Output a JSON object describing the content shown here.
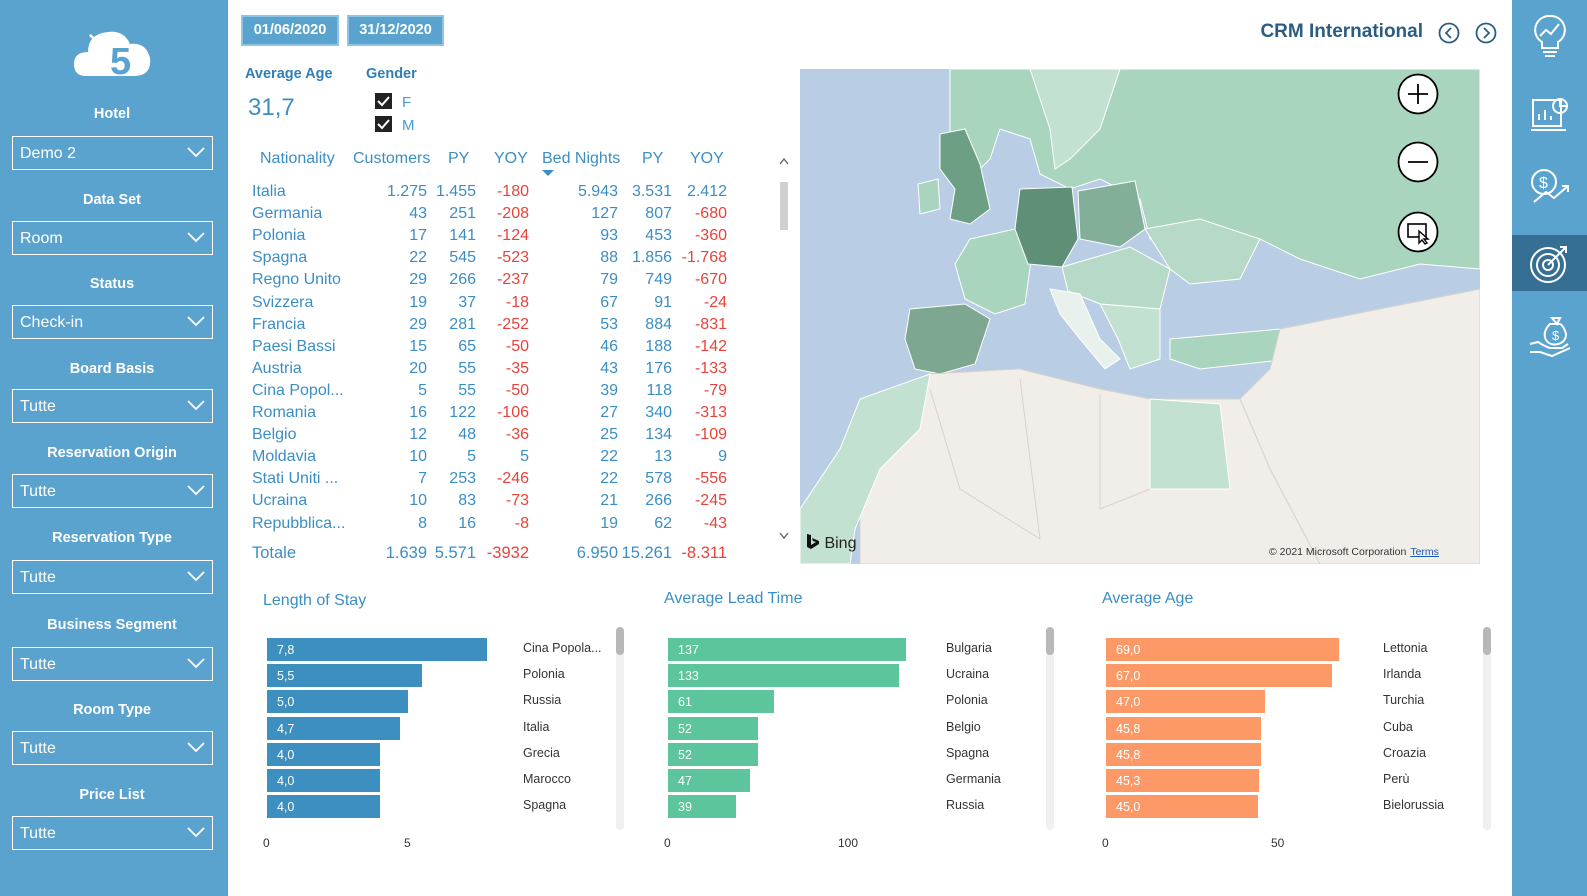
{
  "sidebar": {
    "logo_text": "×5",
    "filters": [
      {
        "label": "Hotel",
        "value": "Demo 2"
      },
      {
        "label": "Data Set",
        "value": "Room"
      },
      {
        "label": "Status",
        "value": "Check-in"
      },
      {
        "label": "Board Basis",
        "value": "Tutte"
      },
      {
        "label": "Reservation Origin",
        "value": "Tutte"
      },
      {
        "label": "Reservation Type",
        "value": "Tutte"
      },
      {
        "label": "Business Segment",
        "value": "Tutte"
      },
      {
        "label": "Room Type",
        "value": "Tutte"
      },
      {
        "label": "Price List",
        "value": "Tutte"
      }
    ]
  },
  "header": {
    "date_from": "01/06/2020",
    "date_to": "31/12/2020",
    "title": "CRM International"
  },
  "kpi": {
    "avg_age_label": "Average Age",
    "avg_age_value": "31,7",
    "gender_label": "Gender",
    "gender_options": [
      "F",
      "M"
    ]
  },
  "table": {
    "headers": [
      "Nationality",
      "Customers",
      "PY",
      "YOY",
      "Bed Nights",
      "PY",
      "YOY"
    ],
    "rows": [
      {
        "nat": "Italia",
        "cust": "1.275",
        "py": "1.455",
        "yoy": "-180",
        "bn": "5.943",
        "py2": "3.531",
        "yoy2": "2.412"
      },
      {
        "nat": "Germania",
        "cust": "43",
        "py": "251",
        "yoy": "-208",
        "bn": "127",
        "py2": "807",
        "yoy2": "-680"
      },
      {
        "nat": "Polonia",
        "cust": "17",
        "py": "141",
        "yoy": "-124",
        "bn": "93",
        "py2": "453",
        "yoy2": "-360"
      },
      {
        "nat": "Spagna",
        "cust": "22",
        "py": "545",
        "yoy": "-523",
        "bn": "88",
        "py2": "1.856",
        "yoy2": "-1.768"
      },
      {
        "nat": "Regno Unito",
        "cust": "29",
        "py": "266",
        "yoy": "-237",
        "bn": "79",
        "py2": "749",
        "yoy2": "-670"
      },
      {
        "nat": "Svizzera",
        "cust": "19",
        "py": "37",
        "yoy": "-18",
        "bn": "67",
        "py2": "91",
        "yoy2": "-24"
      },
      {
        "nat": "Francia",
        "cust": "29",
        "py": "281",
        "yoy": "-252",
        "bn": "53",
        "py2": "884",
        "yoy2": "-831"
      },
      {
        "nat": "Paesi Bassi",
        "cust": "15",
        "py": "65",
        "yoy": "-50",
        "bn": "46",
        "py2": "188",
        "yoy2": "-142"
      },
      {
        "nat": "Austria",
        "cust": "20",
        "py": "55",
        "yoy": "-35",
        "bn": "43",
        "py2": "176",
        "yoy2": "-133"
      },
      {
        "nat": "Cina Popol...",
        "cust": "5",
        "py": "55",
        "yoy": "-50",
        "bn": "39",
        "py2": "118",
        "yoy2": "-79"
      },
      {
        "nat": "Romania",
        "cust": "16",
        "py": "122",
        "yoy": "-106",
        "bn": "27",
        "py2": "340",
        "yoy2": "-313"
      },
      {
        "nat": "Belgio",
        "cust": "12",
        "py": "48",
        "yoy": "-36",
        "bn": "25",
        "py2": "134",
        "yoy2": "-109"
      },
      {
        "nat": "Moldavia",
        "cust": "10",
        "py": "5",
        "yoy": "5",
        "bn": "22",
        "py2": "13",
        "yoy2": "9"
      },
      {
        "nat": "Stati Uniti ...",
        "cust": "7",
        "py": "253",
        "yoy": "-246",
        "bn": "22",
        "py2": "578",
        "yoy2": "-556"
      },
      {
        "nat": "Ucraina",
        "cust": "10",
        "py": "83",
        "yoy": "-73",
        "bn": "21",
        "py2": "266",
        "yoy2": "-245"
      },
      {
        "nat": "Repubblica...",
        "cust": "8",
        "py": "16",
        "yoy": "-8",
        "bn": "19",
        "py2": "62",
        "yoy2": "-43"
      }
    ],
    "totals": {
      "nat": "Totale",
      "cust": "1.639",
      "py": "5.571",
      "yoy": "-3932",
      "bn": "6.950",
      "py2": "15.261",
      "yoy2": "-8.311"
    }
  },
  "map": {
    "bing_label": "Bing",
    "copyright": "© 2021 Microsoft Corporation",
    "terms": "Terms",
    "land_color": "#f1eeea",
    "water_color": "#b9cde4",
    "highlight_color": "#5f8f76"
  },
  "charts": {
    "length_of_stay": {
      "title": "Length of Stay",
      "color": "#3d8fbf",
      "categories": [
        "Cina Popola...",
        "Polonia",
        "Russia",
        "Italia",
        "Grecia",
        "Marocco",
        "Spagna"
      ],
      "values": [
        7.8,
        5.5,
        5.0,
        4.7,
        4.0,
        4.0,
        4.0
      ],
      "labels": [
        "7,8",
        "5,5",
        "5,0",
        "4,7",
        "4,0",
        "4,0",
        "4,0"
      ],
      "ticks": [
        "0",
        "5"
      ],
      "tick_values": [
        0,
        5
      ]
    },
    "average_lead_time": {
      "title": "Average Lead Time",
      "color": "#5cc59b",
      "categories": [
        "Bulgaria",
        "Ucraina",
        "Polonia",
        "Belgio",
        "Spagna",
        "Germania",
        "Russia"
      ],
      "values": [
        137,
        133,
        61,
        52,
        52,
        47,
        39
      ],
      "labels": [
        "137",
        "133",
        "61",
        "52",
        "52",
        "47",
        "39"
      ],
      "ticks": [
        "0",
        "100"
      ],
      "tick_values": [
        0,
        100
      ]
    },
    "average_age": {
      "title": "Average Age",
      "color": "#fd9966",
      "categories": [
        "Lettonia",
        "Irlanda",
        "Turchia",
        "Cuba",
        "Croazia",
        "Perù",
        "Bielorussia"
      ],
      "values": [
        69.0,
        67.0,
        47.0,
        45.8,
        45.8,
        45.3,
        45.0
      ],
      "labels": [
        "69,0",
        "67,0",
        "47,0",
        "45,8",
        "45,8",
        "45,3",
        "45,0"
      ],
      "ticks": [
        "0",
        "50"
      ],
      "tick_values": [
        0,
        50
      ]
    }
  }
}
